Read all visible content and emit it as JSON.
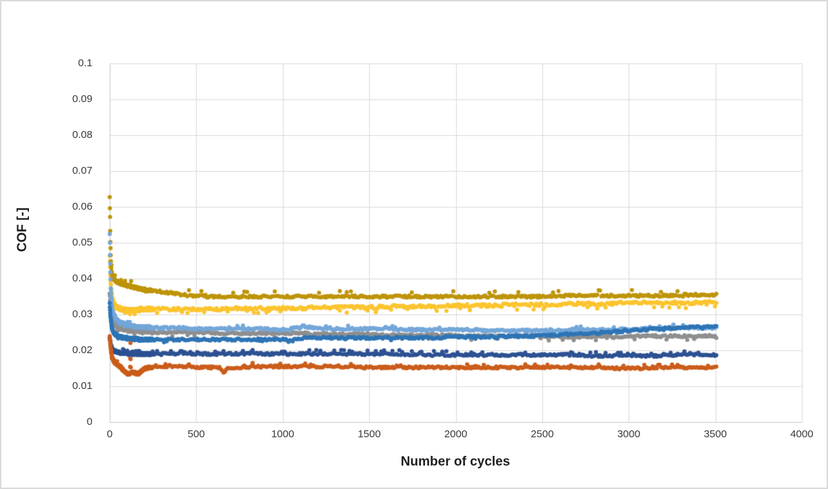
{
  "window": {
    "background": "#ffffff",
    "frame_border_color": "#dadada"
  },
  "chart_data": {
    "type": "scatter",
    "title": "",
    "xlabel": "Number of cycles",
    "ylabel": "COF [-]",
    "xlim": [
      0,
      4000
    ],
    "ylim": [
      0,
      0.1
    ],
    "grid": true,
    "legend": "none",
    "gridline_color": "#d9d9d9",
    "axis_line_color": "#c6c6c6",
    "tick_label_color": "#3a3a3a",
    "x_tick_values": [
      0,
      500,
      1000,
      1500,
      2000,
      2500,
      3000,
      3500,
      4000
    ],
    "x_tick_labels": [
      "0",
      "500",
      "1000",
      "1500",
      "2000",
      "2500",
      "3000",
      "3500",
      "4000"
    ],
    "y_tick_values": [
      0,
      0.01,
      0.02,
      0.03,
      0.04,
      0.05,
      0.06,
      0.07,
      0.08,
      0.09,
      0.1
    ],
    "y_tick_labels": [
      "0",
      "0.01",
      "0.02",
      "0.03",
      "0.04",
      "0.05",
      "0.06",
      "0.07",
      "0.08",
      "0.09",
      "0.1"
    ],
    "x_data_end": 3510,
    "series": [
      {
        "name": "series-yellow",
        "color": "#FCC42E",
        "marker_radius": 3,
        "jitter": 0.0004,
        "bump": -0.0011,
        "bump_p": 0.06,
        "anchors": [
          [
            0,
            0.046
          ],
          [
            3,
            0.0415
          ],
          [
            6,
            0.0385
          ],
          [
            10,
            0.0362
          ],
          [
            15,
            0.0345
          ],
          [
            22,
            0.0332
          ],
          [
            35,
            0.0322
          ],
          [
            60,
            0.0316
          ],
          [
            100,
            0.0313
          ],
          [
            200,
            0.0314
          ],
          [
            350,
            0.0316
          ],
          [
            600,
            0.0316
          ],
          [
            900,
            0.0317
          ],
          [
            1300,
            0.032
          ],
          [
            1700,
            0.0322
          ],
          [
            2100,
            0.0325
          ],
          [
            2500,
            0.0328
          ],
          [
            2900,
            0.0331
          ],
          [
            3200,
            0.0333
          ],
          [
            3510,
            0.0334
          ]
        ]
      },
      {
        "name": "series-dark-gold",
        "color": "#BE9409",
        "marker_radius": 3,
        "jitter": 0.0003,
        "bump": 0.0013,
        "bump_p": 0.05,
        "anchors": [
          [
            0,
            0.0625
          ],
          [
            2,
            0.057
          ],
          [
            4,
            0.05
          ],
          [
            6,
            0.0465
          ],
          [
            8,
            0.0435
          ],
          [
            12,
            0.0415
          ],
          [
            18,
            0.0405
          ],
          [
            25,
            0.0398
          ],
          [
            40,
            0.0392
          ],
          [
            60,
            0.0387
          ],
          [
            90,
            0.0382
          ],
          [
            130,
            0.0378
          ],
          [
            170,
            0.0372
          ],
          [
            210,
            0.0368
          ],
          [
            260,
            0.0366
          ],
          [
            310,
            0.0363
          ],
          [
            370,
            0.0358
          ],
          [
            430,
            0.0354
          ],
          [
            500,
            0.0352
          ],
          [
            650,
            0.035
          ],
          [
            900,
            0.035
          ],
          [
            1300,
            0.035
          ],
          [
            1700,
            0.0349
          ],
          [
            2100,
            0.035
          ],
          [
            2500,
            0.0351
          ],
          [
            2900,
            0.0352
          ],
          [
            3200,
            0.0353
          ],
          [
            3510,
            0.0355
          ]
        ]
      },
      {
        "name": "series-gray",
        "color": "#8F8F8F",
        "marker_radius": 3,
        "jitter": 0.0003,
        "bump": -0.0008,
        "bump_p": 0.05,
        "anchors": [
          [
            0,
            0.036
          ],
          [
            4,
            0.0325
          ],
          [
            8,
            0.0302
          ],
          [
            14,
            0.0288
          ],
          [
            25,
            0.0275
          ],
          [
            45,
            0.0265
          ],
          [
            75,
            0.0259
          ],
          [
            120,
            0.0255
          ],
          [
            200,
            0.0252
          ],
          [
            320,
            0.025
          ],
          [
            550,
            0.0249
          ],
          [
            850,
            0.0247
          ],
          [
            1250,
            0.0246
          ],
          [
            1650,
            0.0243
          ],
          [
            2050,
            0.0241
          ],
          [
            2450,
            0.0239
          ],
          [
            2750,
            0.0238
          ],
          [
            3050,
            0.0239
          ],
          [
            3510,
            0.0241
          ]
        ]
      },
      {
        "name": "series-light-blue",
        "color": "#74A7D9",
        "marker_radius": 3,
        "jitter": 0.0003,
        "bump": 0.0007,
        "bump_p": 0.07,
        "anchors": [
          [
            0,
            0.0525
          ],
          [
            3,
            0.044
          ],
          [
            6,
            0.0375
          ],
          [
            10,
            0.034
          ],
          [
            15,
            0.0315
          ],
          [
            22,
            0.0302
          ],
          [
            35,
            0.0288
          ],
          [
            55,
            0.0278
          ],
          [
            90,
            0.0271
          ],
          [
            150,
            0.0266
          ],
          [
            260,
            0.0263
          ],
          [
            450,
            0.0261
          ],
          [
            750,
            0.026
          ],
          [
            1040,
            0.0258
          ],
          [
            1090,
            0.0262
          ],
          [
            1400,
            0.026
          ],
          [
            1800,
            0.0258
          ],
          [
            2200,
            0.0256
          ],
          [
            2600,
            0.0256
          ],
          [
            3000,
            0.0258
          ],
          [
            3300,
            0.0262
          ],
          [
            3510,
            0.0263
          ]
        ]
      },
      {
        "name": "series-blue",
        "color": "#2E75B6",
        "marker_radius": 3,
        "jitter": 0.0003,
        "bump": -0.0005,
        "bump_p": 0.04,
        "anchors": [
          [
            0,
            0.033
          ],
          [
            5,
            0.0292
          ],
          [
            10,
            0.027
          ],
          [
            18,
            0.0254
          ],
          [
            30,
            0.0245
          ],
          [
            50,
            0.0239
          ],
          [
            80,
            0.0235
          ],
          [
            130,
            0.0232
          ],
          [
            220,
            0.023
          ],
          [
            400,
            0.0229
          ],
          [
            700,
            0.0229
          ],
          [
            1060,
            0.023
          ],
          [
            1120,
            0.0234
          ],
          [
            1500,
            0.0235
          ],
          [
            1900,
            0.0236
          ],
          [
            2300,
            0.0239
          ],
          [
            2600,
            0.0243
          ],
          [
            2850,
            0.0249
          ],
          [
            3050,
            0.0257
          ],
          [
            3250,
            0.0263
          ],
          [
            3510,
            0.0268
          ]
        ]
      },
      {
        "name": "series-dark-blue",
        "color": "#2D5192",
        "marker_radius": 3,
        "jitter": 0.0003,
        "bump": 0.0008,
        "bump_p": 0.12,
        "anchors": [
          [
            0,
            0.0235
          ],
          [
            5,
            0.0218
          ],
          [
            10,
            0.0208
          ],
          [
            20,
            0.02
          ],
          [
            40,
            0.0195
          ],
          [
            80,
            0.0192
          ],
          [
            150,
            0.019
          ],
          [
            400,
            0.019
          ],
          [
            900,
            0.019
          ],
          [
            1500,
            0.0189
          ],
          [
            2200,
            0.0188
          ],
          [
            2800,
            0.0186
          ],
          [
            3200,
            0.0186
          ],
          [
            3510,
            0.0187
          ]
        ]
      },
      {
        "name": "series-orange",
        "color": "#CB5D1B",
        "marker_radius": 3,
        "jitter": 0.0003,
        "bump": 0.0007,
        "bump_p": 0.07,
        "anchors": [
          [
            0,
            0.024
          ],
          [
            4,
            0.0212
          ],
          [
            8,
            0.0196
          ],
          [
            14,
            0.0181
          ],
          [
            22,
            0.0171
          ],
          [
            35,
            0.0164
          ],
          [
            50,
            0.0159
          ],
          [
            65,
            0.0152
          ],
          [
            80,
            0.0144
          ],
          [
            95,
            0.0137
          ],
          [
            110,
            0.0134
          ],
          [
            117,
            0.0135
          ],
          [
            119,
            0.0175
          ],
          [
            120,
            0.0218
          ],
          [
            121,
            0.0175
          ],
          [
            123,
            0.0136
          ],
          [
            135,
            0.014
          ],
          [
            150,
            0.0136
          ],
          [
            163,
            0.0133
          ],
          [
            178,
            0.014
          ],
          [
            195,
            0.0147
          ],
          [
            225,
            0.0152
          ],
          [
            280,
            0.0154
          ],
          [
            420,
            0.0155
          ],
          [
            560,
            0.0152
          ],
          [
            640,
            0.0152
          ],
          [
            660,
            0.0139
          ],
          [
            680,
            0.0152
          ],
          [
            900,
            0.0155
          ],
          [
            1300,
            0.0154
          ],
          [
            1800,
            0.0153
          ],
          [
            2400,
            0.0152
          ],
          [
            3000,
            0.0151
          ],
          [
            3510,
            0.0152
          ]
        ]
      }
    ]
  }
}
